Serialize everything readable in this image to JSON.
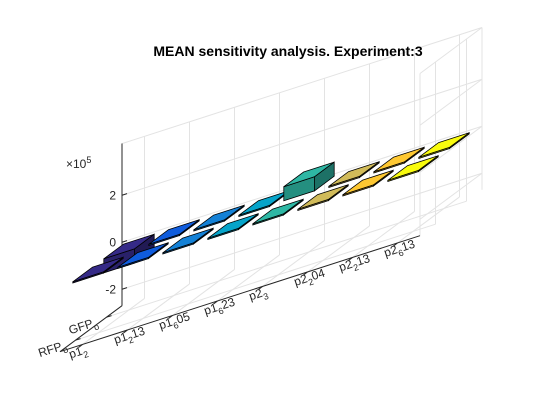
{
  "chart_data": {
    "type": "bar3",
    "title": "MEAN sensitivity analysis. Experiment:3",
    "z_exponent_label": "×10",
    "z_exponent": "5",
    "zlim": [
      -2,
      2
    ],
    "z_ticks": [
      "2",
      "0",
      "-2"
    ],
    "grid": true,
    "categories": [
      {
        "main": "p1",
        "sub": "2",
        "tail": ""
      },
      {
        "main": "p1",
        "sub": "2",
        "tail": "13"
      },
      {
        "main": "p1",
        "sub": "6",
        "tail": "05"
      },
      {
        "main": "p1",
        "sub": "6",
        "tail": "23"
      },
      {
        "main": "p2",
        "sub": "3",
        "tail": ""
      },
      {
        "main": "p2",
        "sub": "2",
        "tail": "04"
      },
      {
        "main": "p2",
        "sub": "2",
        "tail": "13"
      },
      {
        "main": "p2",
        "sub": "6",
        "tail": "13"
      }
    ],
    "rows": [
      {
        "main": "GFP",
        "sub": "o"
      },
      {
        "main": "RFP",
        "sub": "o"
      }
    ],
    "values": [
      [
        -0.6,
        -0.05,
        -0.05,
        -0.05,
        0.6,
        -0.05,
        -0.05,
        -0.05
      ],
      [
        -0.05,
        -0.05,
        -0.05,
        -0.05,
        -0.05,
        -0.05,
        -0.05,
        -0.05
      ]
    ],
    "colors": [
      "#352a87",
      "#0f5cdd",
      "#1481d6",
      "#06a4ca",
      "#2eb7a4",
      "#87bf77",
      "#d1bb59",
      "#fec832",
      "#f9fb0e"
    ]
  }
}
